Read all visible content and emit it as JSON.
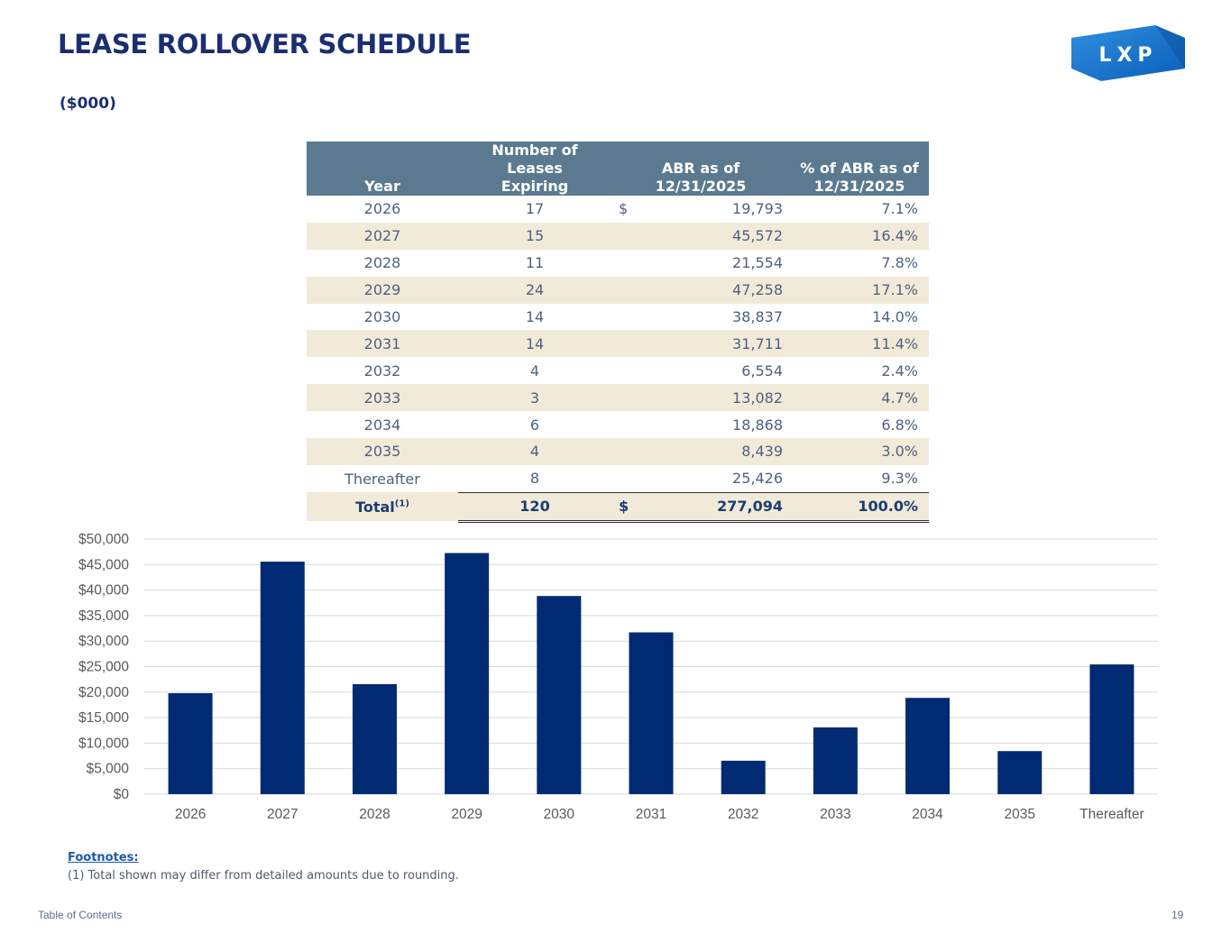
{
  "header": {
    "title": "LEASE ROLLOVER SCHEDULE",
    "units": "($000)",
    "logo_text": "LXP"
  },
  "table": {
    "headers": {
      "year": "Year",
      "leases_line1": "Number of Leases",
      "leases_line2": "Expiring",
      "abr_line1": "ABR as of",
      "abr_line2": "12/31/2025",
      "pct_line1": "% of ABR as of",
      "pct_line2": "12/31/2025"
    },
    "currency_symbol": "$",
    "rows": [
      {
        "year": "2026",
        "leases": "17",
        "abr": "19,793",
        "pct": "7.1%"
      },
      {
        "year": "2027",
        "leases": "15",
        "abr": "45,572",
        "pct": "16.4%"
      },
      {
        "year": "2028",
        "leases": "11",
        "abr": "21,554",
        "pct": "7.8%"
      },
      {
        "year": "2029",
        "leases": "24",
        "abr": "47,258",
        "pct": "17.1%"
      },
      {
        "year": "2030",
        "leases": "14",
        "abr": "38,837",
        "pct": "14.0%"
      },
      {
        "year": "2031",
        "leases": "14",
        "abr": "31,711",
        "pct": "11.4%"
      },
      {
        "year": "2032",
        "leases": "4",
        "abr": "6,554",
        "pct": "2.4%"
      },
      {
        "year": "2033",
        "leases": "3",
        "abr": "13,082",
        "pct": "4.7%"
      },
      {
        "year": "2034",
        "leases": "6",
        "abr": "18,868",
        "pct": "6.8%"
      },
      {
        "year": "2035",
        "leases": "4",
        "abr": "8,439",
        "pct": "3.0%"
      },
      {
        "year": "Thereafter",
        "leases": "8",
        "abr": "25,426",
        "pct": "9.3%"
      }
    ],
    "total": {
      "label": "Total",
      "footnote_ref": "(1)",
      "leases": "120",
      "abr": "277,094",
      "pct": "100.0%"
    }
  },
  "chart_data": {
    "type": "bar",
    "title": "",
    "xlabel": "",
    "ylabel": "",
    "categories": [
      "2026",
      "2027",
      "2028",
      "2029",
      "2030",
      "2031",
      "2032",
      "2033",
      "2034",
      "2035",
      "Thereafter"
    ],
    "values": [
      19793,
      45572,
      21554,
      47258,
      38837,
      31711,
      6554,
      13082,
      18868,
      8439,
      25426
    ],
    "ylim": [
      0,
      50000
    ],
    "yticks": [
      0,
      5000,
      10000,
      15000,
      20000,
      25000,
      30000,
      35000,
      40000,
      45000,
      50000
    ],
    "ytick_labels": [
      "$0",
      "$5,000",
      "$10,000",
      "$15,000",
      "$20,000",
      "$25,000",
      "$30,000",
      "$35,000",
      "$40,000",
      "$45,000",
      "$50,000"
    ],
    "grid": true,
    "bar_color": "#002b73"
  },
  "footnotes": {
    "heading": "Footnotes:",
    "items": [
      "(1)  Total shown may differ from detailed amounts due to rounding."
    ]
  },
  "footer": {
    "toc_link": "Table of Contents",
    "page_number": "19"
  }
}
